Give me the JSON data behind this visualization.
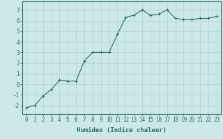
{
  "x": [
    0,
    1,
    2,
    3,
    4,
    5,
    6,
    7,
    8,
    9,
    10,
    11,
    12,
    13,
    14,
    15,
    16,
    17,
    18,
    19,
    20,
    21,
    22,
    23
  ],
  "y": [
    -2.2,
    -2.0,
    -1.1,
    -0.5,
    0.4,
    0.3,
    0.3,
    2.2,
    3.0,
    3.0,
    3.0,
    4.7,
    6.3,
    6.5,
    7.0,
    6.5,
    6.6,
    7.0,
    6.2,
    6.1,
    6.1,
    6.2,
    6.2,
    6.4
  ],
  "line_color": "#2e6b5e",
  "marker": "+",
  "bg_color": "#cce8e8",
  "grid_color": "#b0d0d0",
  "xlabel": "Humidex (Indice chaleur)",
  "ylim": [
    -2.8,
    7.8
  ],
  "xlim": [
    -0.5,
    23.5
  ],
  "yticks": [
    -2,
    -1,
    0,
    1,
    2,
    3,
    4,
    5,
    6,
    7
  ],
  "xticks": [
    0,
    1,
    2,
    3,
    4,
    5,
    6,
    7,
    8,
    9,
    10,
    11,
    12,
    13,
    14,
    15,
    16,
    17,
    18,
    19,
    20,
    21,
    22,
    23
  ],
  "tick_color": "#2e6b5e",
  "label_fontsize": 5.5,
  "xlabel_fontsize": 6.5,
  "axis_color": "#2e6b5e",
  "linewidth": 0.8,
  "markersize": 3,
  "markeredgewidth": 0.8
}
